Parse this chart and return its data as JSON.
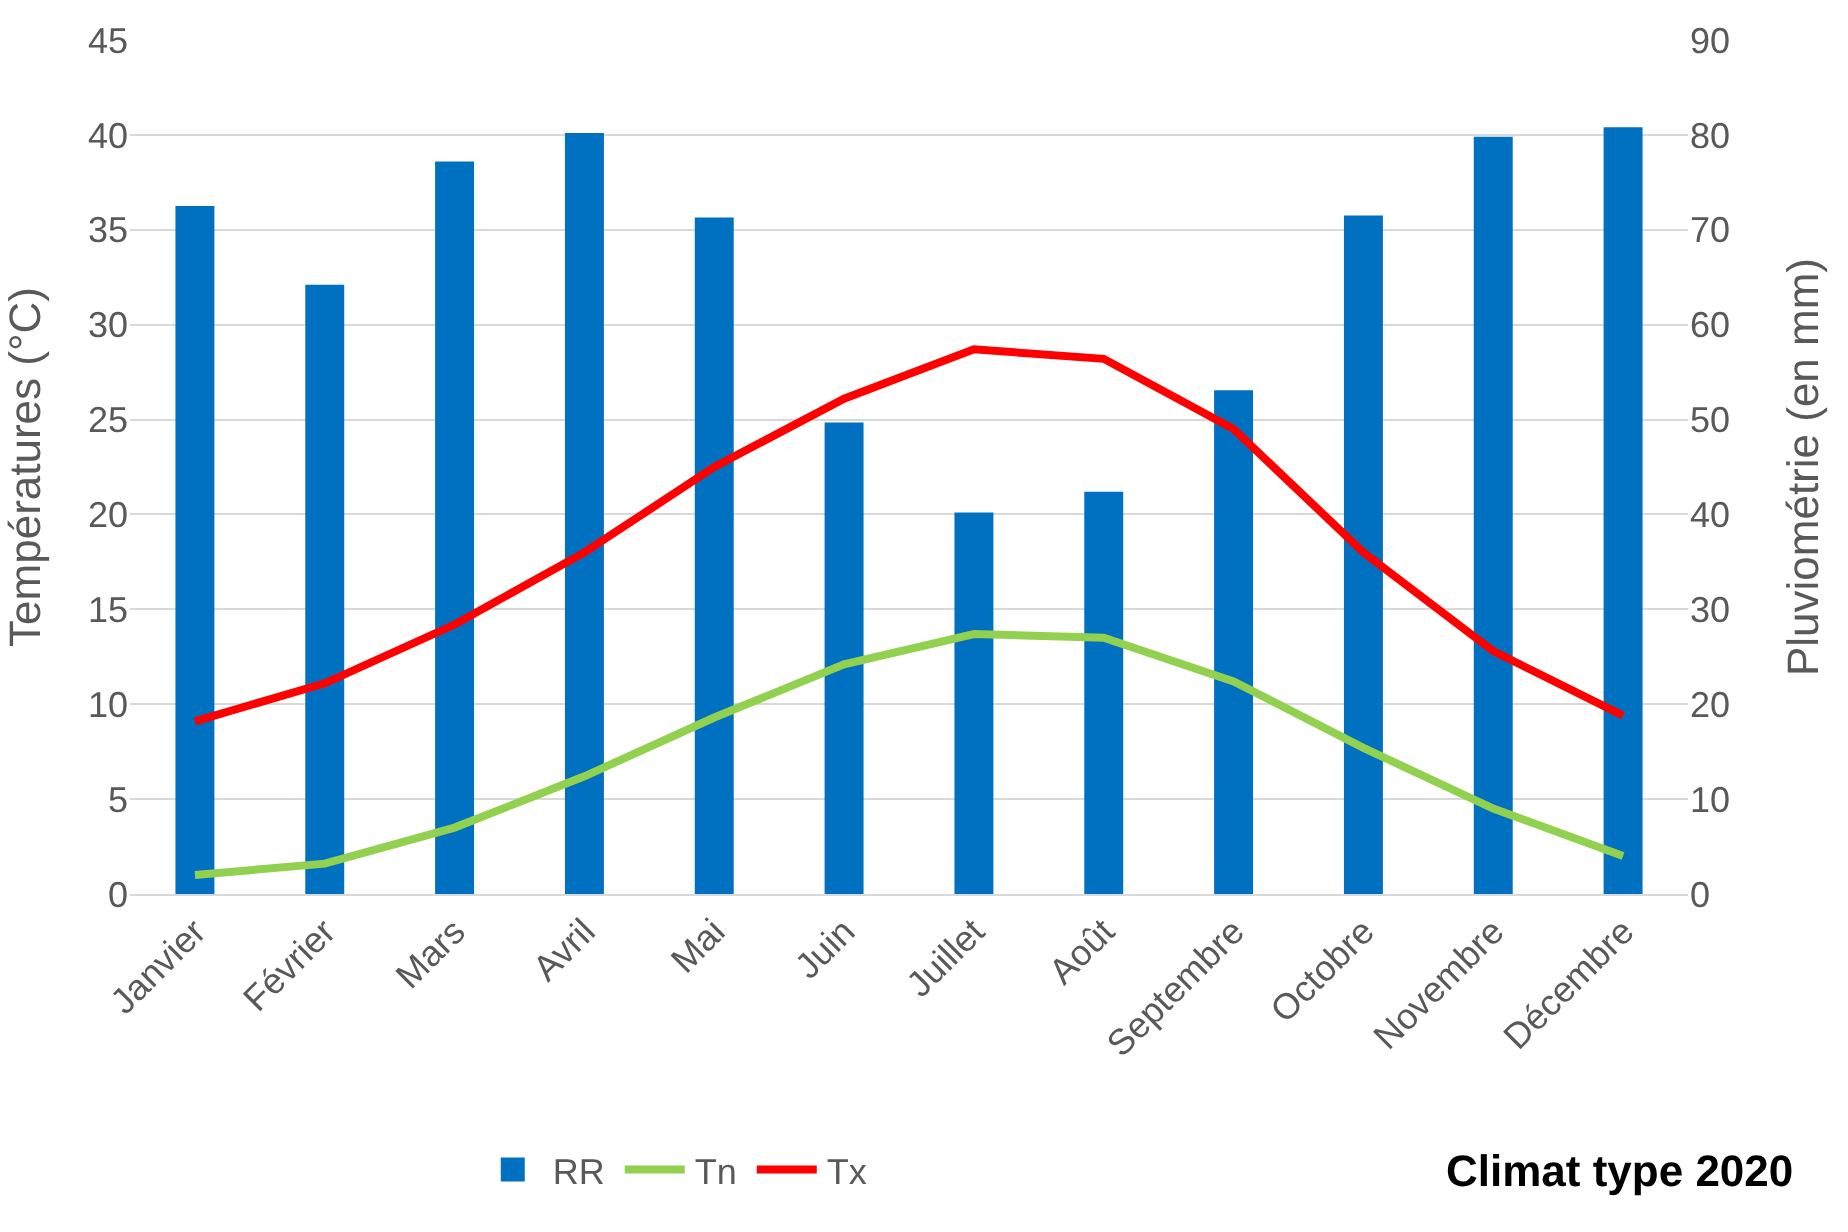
{
  "chart_data": {
    "type": "bar",
    "title": "Climat type 2020",
    "categories": [
      "Janvier",
      "Février",
      "Mars",
      "Avril",
      "Mai",
      "Juin",
      "Juillet",
      "Août",
      "Septembre",
      "Octobre",
      "Novembre",
      "Décembre"
    ],
    "series": [
      {
        "name": "RR",
        "axis": "y2",
        "color": "#0070c0",
        "values": [
          72.5,
          64.2,
          77.2,
          80.2,
          71.3,
          49.7,
          40.2,
          42.4,
          53.1,
          71.5,
          79.8,
          80.8
        ]
      },
      {
        "name": "Tn",
        "type": "line",
        "color": "#92d050",
        "values": [
          1.0,
          1.6,
          3.5,
          6.2,
          9.3,
          12.1,
          13.7,
          13.5,
          11.2,
          7.7,
          4.5,
          2.0
        ]
      },
      {
        "name": "Tx",
        "type": "line",
        "color": "#ff0000",
        "values": [
          9.1,
          11.1,
          14.2,
          18.0,
          22.5,
          26.1,
          28.7,
          28.2,
          24.5,
          18.0,
          12.8,
          9.4
        ]
      }
    ],
    "ylabel": "Températures (°C)",
    "y2label": "Pluviométrie (en mm)",
    "ylim": [
      0,
      45
    ],
    "yticks": [
      0,
      5,
      10,
      15,
      20,
      25,
      30,
      35,
      40,
      45
    ],
    "y2lim": [
      0,
      90
    ],
    "y2ticks": [
      0,
      10,
      20,
      30,
      40,
      50,
      60,
      70,
      80,
      90
    ],
    "grid": "y",
    "legend": "bottom",
    "marker": "none",
    "line_style": "solid"
  }
}
